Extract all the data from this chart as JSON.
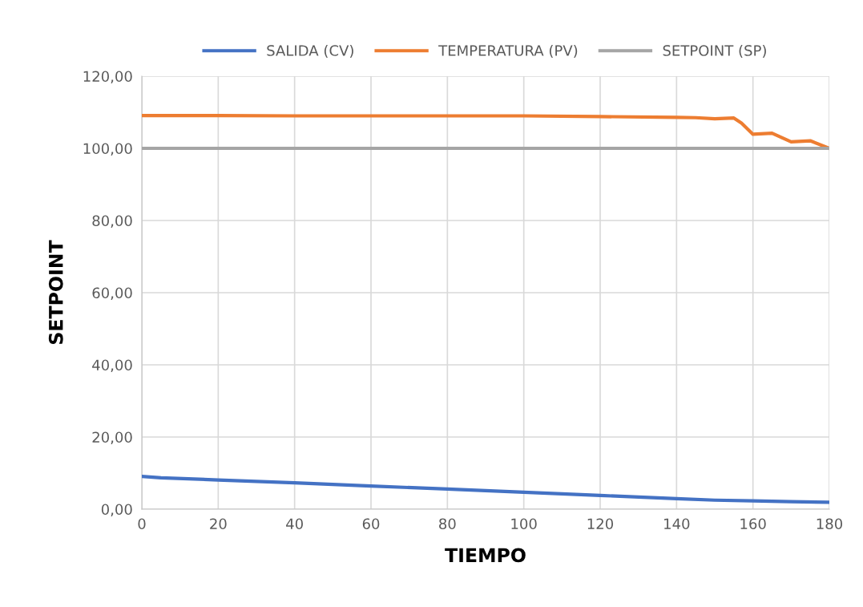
{
  "chart_data": {
    "type": "line",
    "xlabel": "TIEMPO",
    "ylabel": "SETPOINT",
    "series": [
      {
        "name": "SALIDA (CV)",
        "color": "#4472c4",
        "x": [
          0,
          5,
          20,
          40,
          60,
          80,
          100,
          120,
          140,
          150,
          160,
          170,
          180
        ],
        "values": [
          9.1,
          8.7,
          8.1,
          7.3,
          6.4,
          5.6,
          4.7,
          3.8,
          2.9,
          2.5,
          2.3,
          2.1,
          1.9
        ]
      },
      {
        "name": "TEMPERATURA (PV)",
        "color": "#ed7d31",
        "x": [
          0,
          20,
          40,
          60,
          80,
          100,
          120,
          140,
          145,
          150,
          155,
          157,
          160,
          165,
          170,
          175,
          180
        ],
        "values": [
          109.1,
          109.1,
          109.0,
          109.0,
          109.0,
          109.0,
          108.8,
          108.6,
          108.5,
          108.2,
          108.4,
          107.0,
          103.9,
          104.2,
          101.8,
          102.1,
          100.0
        ]
      },
      {
        "name": "SETPOINT (SP)",
        "color": "#a5a5a5",
        "x": [
          0,
          180
        ],
        "values": [
          100,
          100
        ]
      }
    ],
    "xlim": [
      0,
      180
    ],
    "xticks": [
      0,
      20,
      40,
      60,
      80,
      100,
      120,
      140,
      160,
      180
    ],
    "ylim": [
      0,
      120
    ],
    "yticks": [
      {
        "value": 0,
        "label": "0,00"
      },
      {
        "value": 20,
        "label": "20,00"
      },
      {
        "value": 40,
        "label": "40,00"
      },
      {
        "value": 60,
        "label": "60,00"
      },
      {
        "value": 80,
        "label": "80,00"
      },
      {
        "value": 100,
        "label": "100,00"
      },
      {
        "value": 120,
        "label": "120,00"
      }
    ],
    "grid": true,
    "legend": "top",
    "marker": "none",
    "line_style": "solid"
  }
}
